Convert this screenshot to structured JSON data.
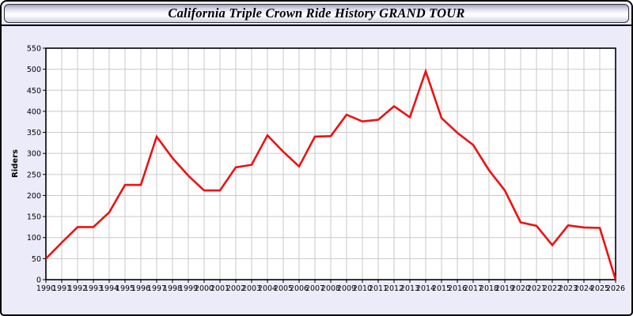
{
  "window": {
    "title": "California Triple Crown Ride History GRAND TOUR"
  },
  "chart_data": {
    "type": "line",
    "title": "California Triple Crown Ride History GRAND TOUR",
    "xlabel": "",
    "ylabel": "Riders",
    "x": [
      1990,
      1991,
      1992,
      1993,
      1994,
      1995,
      1996,
      1997,
      1998,
      1999,
      2000,
      2001,
      2002,
      2003,
      2004,
      2005,
      2006,
      2007,
      2008,
      2009,
      2010,
      2011,
      2012,
      2013,
      2014,
      2015,
      2016,
      2017,
      2018,
      2019,
      2020,
      2021,
      2022,
      2023,
      2024,
      2025,
      2026
    ],
    "series": [
      {
        "name": "Riders",
        "color": "#ee1111",
        "values": [
          50,
          88,
          125,
          125,
          160,
          225,
          225,
          340,
          289,
          247,
          212,
          212,
          267,
          273,
          343,
          304,
          269,
          340,
          341,
          392,
          376,
          380,
          412,
          386,
          495,
          384,
          349,
          320,
          260,
          212,
          136,
          128,
          82,
          129,
          124,
          123,
          0
        ]
      }
    ],
    "ylim": [
      0,
      550
    ],
    "ytick_step": 50,
    "grid": true,
    "legend_position": "none",
    "plot_background": "#ffffff",
    "page_background": "#ebebfa",
    "grid_color": "#c9c9c9",
    "axis_color": "#000000"
  }
}
